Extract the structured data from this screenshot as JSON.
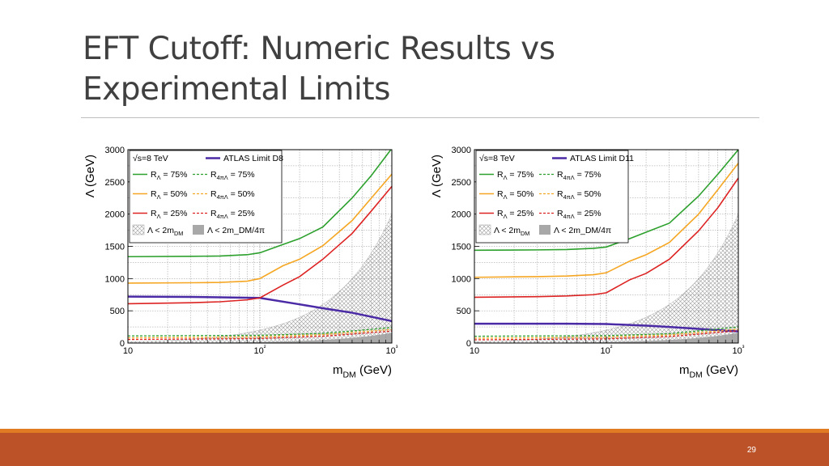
{
  "slide": {
    "title_line1": "EFT Cutoff: Numeric Results vs",
    "title_line2": "Experimental Limits",
    "page_number": "29",
    "colors": {
      "accent_bar": "#bb5228",
      "accent_thin": "#e07b24"
    }
  },
  "chart_data": [
    {
      "type": "line",
      "xscale": "log",
      "xlim": [
        10,
        1000
      ],
      "ylim": [
        0,
        3000
      ],
      "grid": true,
      "legend_position": "top-left",
      "xlabel": "m_DM (GeV)",
      "ylabel": "Λ (GeV)",
      "xticks": [
        10,
        100,
        1000
      ],
      "xtick_labels": [
        "10",
        "10²",
        "10³"
      ],
      "yticks": [
        0,
        500,
        1000,
        1500,
        2000,
        2500,
        3000
      ],
      "legend_header": "√s=8 TeV",
      "series": [
        {
          "name": "ATLAS Limit D8",
          "color": "#4b2aa6",
          "dash": "solid",
          "width": 2.5,
          "x": [
            10,
            30,
            50,
            70,
            100,
            200,
            300,
            500,
            1000
          ],
          "y": [
            720,
            715,
            710,
            705,
            700,
            600,
            540,
            470,
            340
          ]
        },
        {
          "name": "R_Λ = 75%",
          "color": "#2ca02c",
          "dash": "solid",
          "width": 1.6,
          "x": [
            10,
            30,
            50,
            80,
            100,
            150,
            200,
            300,
            500,
            700,
            1000
          ],
          "y": [
            1340,
            1345,
            1350,
            1370,
            1400,
            1530,
            1620,
            1800,
            2250,
            2600,
            3020
          ]
        },
        {
          "name": "R_Λ = 50%",
          "color": "#f5a623",
          "dash": "solid",
          "width": 1.6,
          "x": [
            10,
            30,
            50,
            80,
            100,
            150,
            200,
            300,
            500,
            700,
            1000
          ],
          "y": [
            930,
            935,
            940,
            960,
            1000,
            1200,
            1300,
            1510,
            1900,
            2250,
            2620
          ]
        },
        {
          "name": "R_Λ = 25%",
          "color": "#dd2222",
          "dash": "solid",
          "width": 1.6,
          "x": [
            10,
            30,
            50,
            80,
            100,
            150,
            200,
            300,
            500,
            700,
            1000
          ],
          "y": [
            610,
            625,
            640,
            670,
            700,
            900,
            1030,
            1300,
            1700,
            2050,
            2430
          ]
        },
        {
          "name": "R_4πΛ = 75%",
          "color": "#2ca02c",
          "dash": "dashed",
          "width": 1.3,
          "x": [
            10,
            100,
            300,
            1000
          ],
          "y": [
            110,
            120,
            150,
            240
          ]
        },
        {
          "name": "R_4πΛ = 50%",
          "color": "#f5a623",
          "dash": "dashed",
          "width": 1.3,
          "x": [
            10,
            100,
            300,
            1000
          ],
          "y": [
            80,
            95,
            130,
            210
          ]
        },
        {
          "name": "R_4πΛ = 25%",
          "color": "#dd2222",
          "dash": "dashed",
          "width": 1.3,
          "x": [
            10,
            100,
            300,
            1000
          ],
          "y": [
            55,
            70,
            105,
            185
          ]
        }
      ],
      "regions": [
        {
          "name": "Λ < 2m_DM",
          "style": "hatched"
        },
        {
          "name": "Λ < 2m_DM/4π",
          "style": "filled-gray"
        }
      ]
    },
    {
      "type": "line",
      "xscale": "log",
      "xlim": [
        10,
        1000
      ],
      "ylim": [
        0,
        3000
      ],
      "grid": true,
      "legend_position": "top-left",
      "xlabel": "m_DM (GeV)",
      "ylabel": "Λ (GeV)",
      "xticks": [
        10,
        100,
        1000
      ],
      "xtick_labels": [
        "10",
        "10²",
        "10³"
      ],
      "yticks": [
        0,
        500,
        1000,
        1500,
        2000,
        2500,
        3000
      ],
      "legend_header": "√s=8 TeV",
      "series": [
        {
          "name": "ATLAS Limit D11",
          "color": "#4b2aa6",
          "dash": "solid",
          "width": 2.5,
          "x": [
            10,
            50,
            100,
            200,
            300,
            500,
            1000
          ],
          "y": [
            300,
            300,
            295,
            270,
            250,
            220,
            180
          ]
        },
        {
          "name": "R_Λ = 75%",
          "color": "#2ca02c",
          "dash": "solid",
          "width": 1.6,
          "x": [
            10,
            30,
            50,
            80,
            100,
            150,
            200,
            300,
            500,
            700,
            1000
          ],
          "y": [
            1440,
            1445,
            1450,
            1470,
            1490,
            1620,
            1720,
            1860,
            2280,
            2620,
            3000
          ]
        },
        {
          "name": "R_Λ = 50%",
          "color": "#f5a623",
          "dash": "solid",
          "width": 1.6,
          "x": [
            10,
            30,
            50,
            80,
            100,
            150,
            200,
            300,
            500,
            700,
            1000
          ],
          "y": [
            1020,
            1030,
            1040,
            1060,
            1090,
            1270,
            1370,
            1560,
            2000,
            2380,
            2790
          ]
        },
        {
          "name": "R_Λ = 25%",
          "color": "#dd2222",
          "dash": "solid",
          "width": 1.6,
          "x": [
            10,
            30,
            50,
            80,
            100,
            150,
            200,
            300,
            500,
            700,
            1000
          ],
          "y": [
            710,
            720,
            730,
            750,
            780,
            980,
            1080,
            1300,
            1740,
            2100,
            2560
          ]
        },
        {
          "name": "R_4πΛ = 75%",
          "color": "#2ca02c",
          "dash": "dashed",
          "width": 1.3,
          "x": [
            10,
            100,
            300,
            1000
          ],
          "y": [
            105,
            115,
            145,
            250
          ]
        },
        {
          "name": "R_4πΛ = 50%",
          "color": "#f5a623",
          "dash": "dashed",
          "width": 1.3,
          "x": [
            10,
            100,
            300,
            1000
          ],
          "y": [
            75,
            90,
            125,
            215
          ]
        },
        {
          "name": "R_4πΛ = 25%",
          "color": "#dd2222",
          "dash": "dashed",
          "width": 1.3,
          "x": [
            10,
            100,
            300,
            1000
          ],
          "y": [
            50,
            65,
            100,
            190
          ]
        }
      ],
      "regions": [
        {
          "name": "Λ < 2m_DM",
          "style": "hatched"
        },
        {
          "name": "Λ < 2m_DM/4π",
          "style": "filled-gray"
        }
      ]
    }
  ]
}
